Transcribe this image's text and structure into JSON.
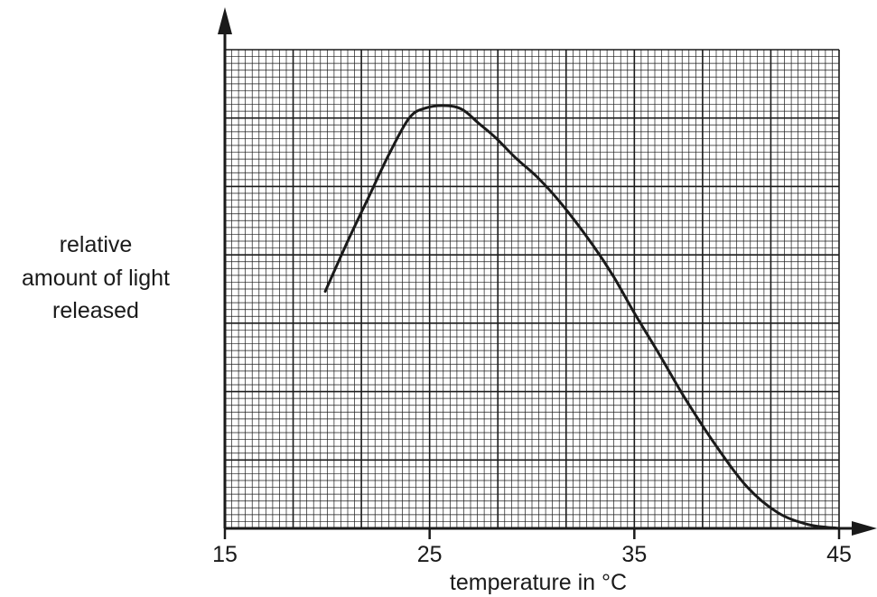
{
  "chart_data": {
    "type": "line",
    "title": "",
    "xlabel": "temperature in °C",
    "ylabel_lines": [
      "relative",
      "amount of light",
      "released"
    ],
    "x_ticks": [
      "15",
      "25",
      "35",
      "45"
    ],
    "xlim": [
      15,
      45
    ],
    "ylim": [
      0,
      100
    ],
    "y_ticks_labeled": false,
    "grid": true,
    "line_color": "#1a1a1a",
    "grid_color": "#1a1a1a",
    "series": [
      {
        "x": [
          19.9,
          21.0,
          22.0,
          23.0,
          24.0,
          24.8,
          25.8,
          26.6,
          27.4,
          28.2,
          29.2,
          30.3,
          31.5,
          33.0,
          34.0,
          35.0,
          36.2,
          37.5,
          39.0,
          40.5,
          42.0,
          43.5,
          45.0
        ],
        "y": [
          49.5,
          60.0,
          69.0,
          78.0,
          85.7,
          87.8,
          88.3,
          87.5,
          84.6,
          81.7,
          77.4,
          73.2,
          67.5,
          59.0,
          52.5,
          45.0,
          36.5,
          27.0,
          17.2,
          8.7,
          3.3,
          0.8,
          0.0
        ]
      }
    ]
  }
}
